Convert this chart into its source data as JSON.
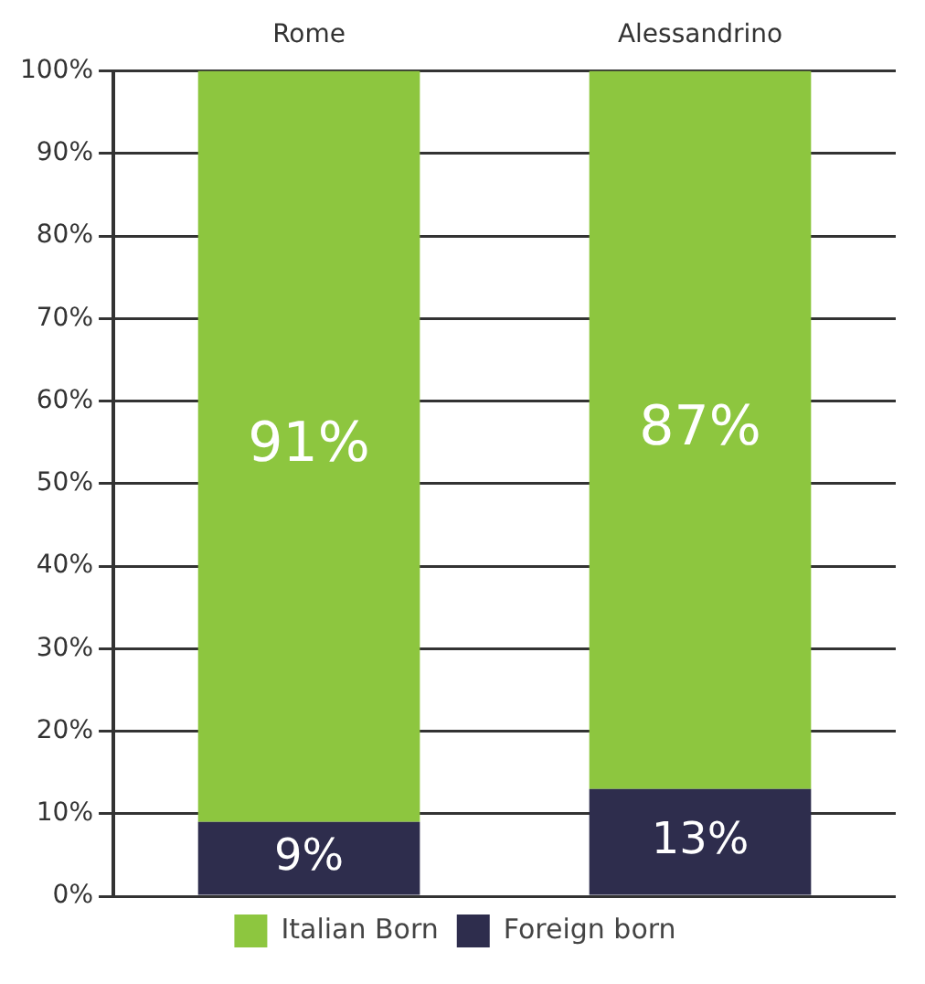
{
  "chart_data": {
    "type": "bar",
    "stacked": true,
    "categories": [
      "Rome",
      "Alessandrino"
    ],
    "series": [
      {
        "name": "Foreign born",
        "color": "#2e2d4d",
        "values": [
          9,
          13
        ],
        "value_labels": [
          "9%",
          "13%"
        ]
      },
      {
        "name": "Italian Born",
        "color": "#8dc63f",
        "values": [
          91,
          87
        ],
        "value_labels": [
          "91%",
          "87%"
        ]
      }
    ],
    "ylim": [
      0,
      100
    ],
    "yticks": [
      {
        "value": 0,
        "label": "0%"
      },
      {
        "value": 10,
        "label": "10%"
      },
      {
        "value": 20,
        "label": "20%"
      },
      {
        "value": 30,
        "label": "30%"
      },
      {
        "value": 40,
        "label": "40%"
      },
      {
        "value": 50,
        "label": "50%"
      },
      {
        "value": 60,
        "label": "60%"
      },
      {
        "value": 70,
        "label": "70%"
      },
      {
        "value": 80,
        "label": "80%"
      },
      {
        "value": 90,
        "label": "90%"
      },
      {
        "value": 100,
        "label": "100%"
      }
    ],
    "grid": "y",
    "legend": "bottom"
  }
}
